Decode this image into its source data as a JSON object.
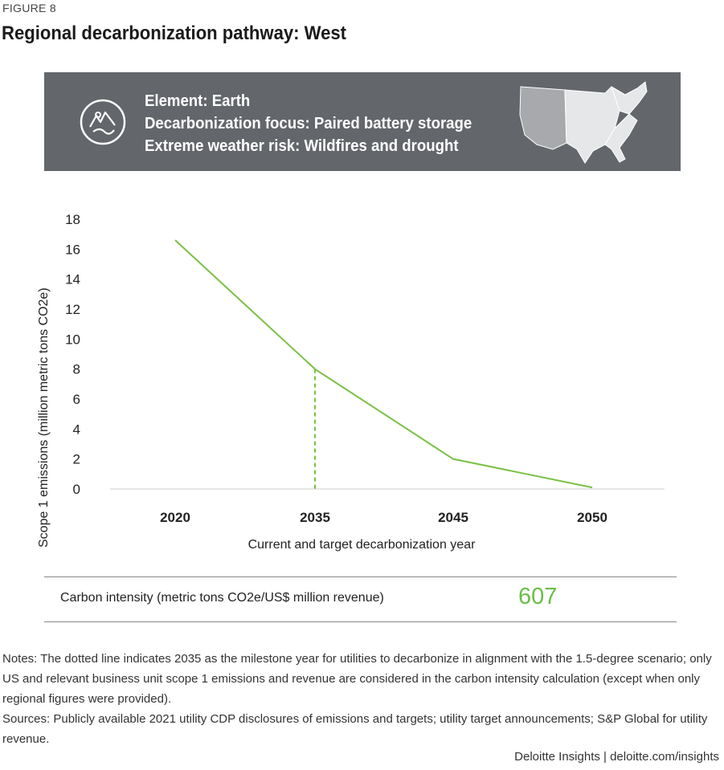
{
  "figure_label": "FIGURE 8",
  "title": "Regional decarbonization pathway: West",
  "banner": {
    "element": "Element: Earth",
    "focus": "Decarbonization focus: Paired battery storage",
    "risk": "Extreme weather risk: Wildfires and drought",
    "icon": "earth-element-icon",
    "map_icon": "us-map-west-highlighted-icon"
  },
  "chart_data": {
    "type": "line",
    "title": "",
    "xlabel": "Current and target decarbonization year",
    "ylabel": "Scope 1 emissions (million metric tons CO2e)",
    "categories": [
      "2020",
      "2035",
      "2045",
      "2050"
    ],
    "series": [
      {
        "values": [
          16.6,
          8.0,
          2.0,
          0.1
        ]
      }
    ],
    "yticks": [
      0,
      2,
      4,
      6,
      8,
      10,
      12,
      14,
      16,
      18
    ],
    "ylim": [
      0,
      18
    ],
    "milestone_category": "2035",
    "colors": {
      "line": "#7ac143",
      "axis": "#cccccc"
    },
    "grid": false
  },
  "carbon_intensity": {
    "label": "Carbon intensity (metric tons CO2e/US$ million revenue)",
    "value": "607"
  },
  "notes": {
    "line1": "Notes: The dotted line indicates 2035 as the milestone year for utilities to decarbonize in alignment with the 1.5-degree scenario; only US and relevant business unit scope 1 emissions and revenue are considered in the carbon intensity calculation (except when only regional figures were provided).",
    "line2": "Sources: Publicly available 2021 utility CDP disclosures of emissions and targets; utility target announcements; S&P Global for utility revenue."
  },
  "footer": "Deloitte Insights | deloitte.com/insights"
}
